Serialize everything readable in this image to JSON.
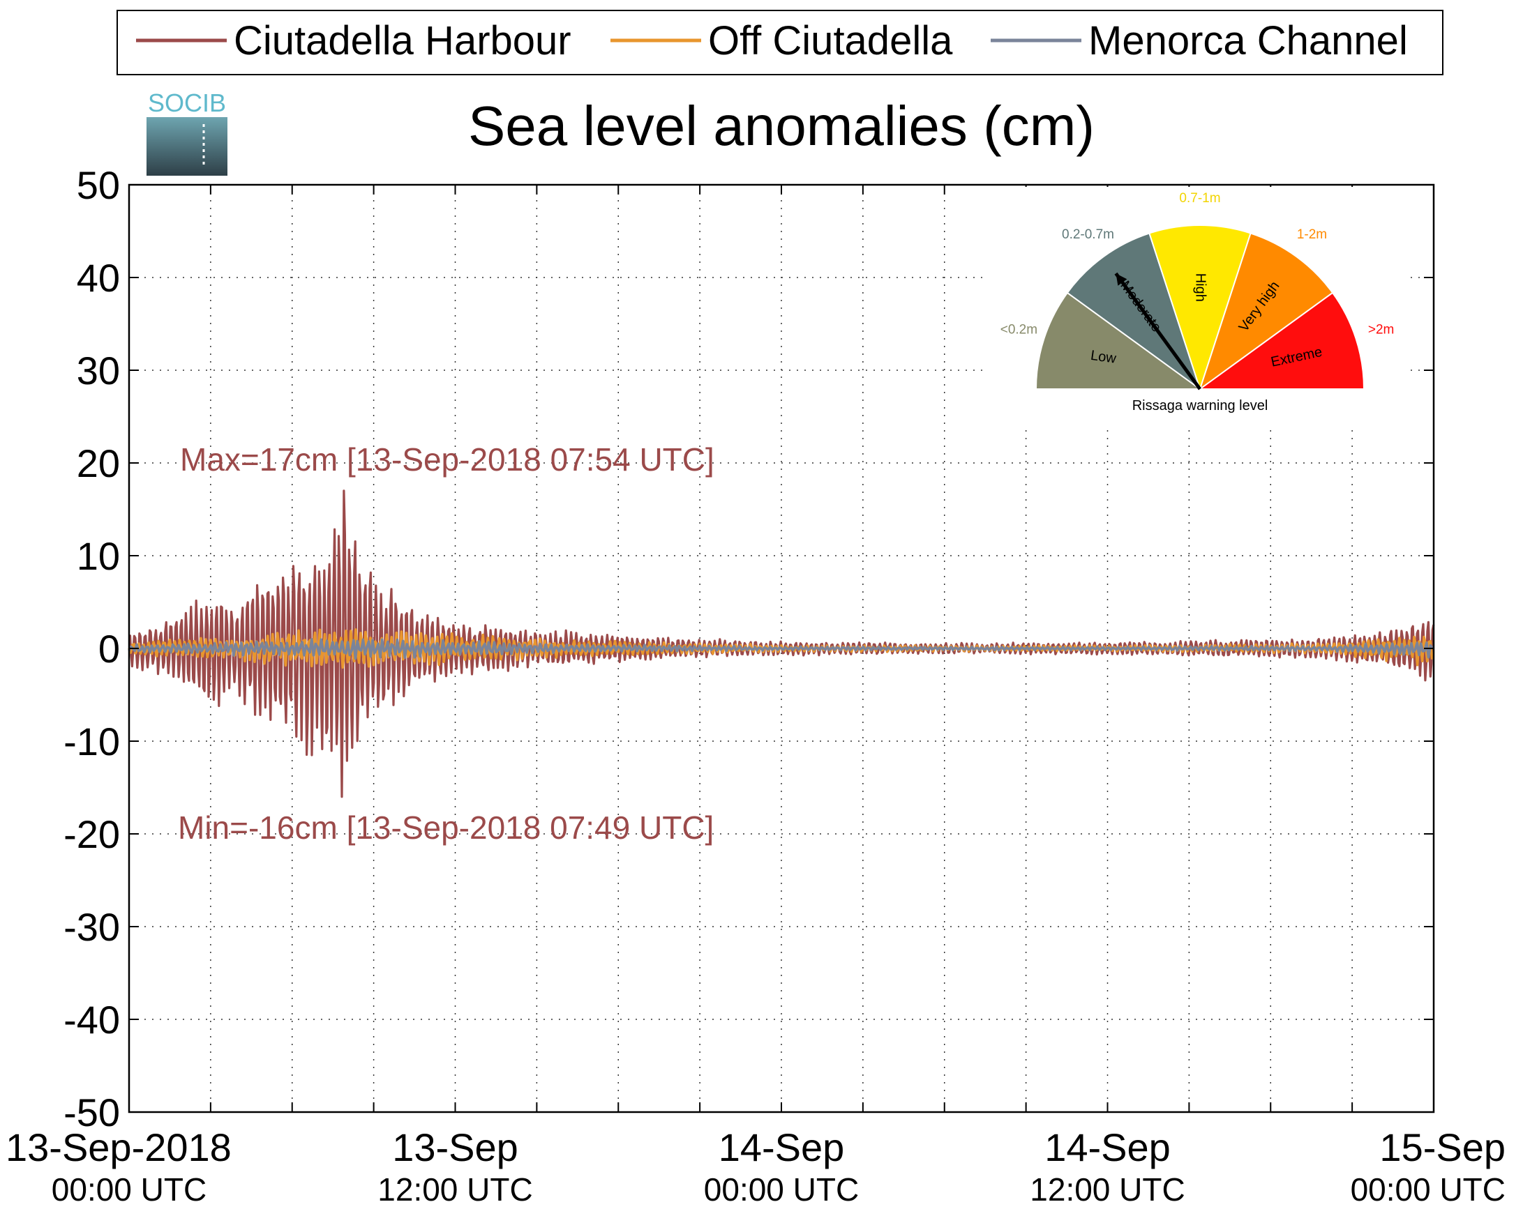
{
  "chart_data": {
    "type": "line",
    "title": "Sea level anomalies (cm)",
    "logo_text": "SOCIB",
    "ylim": [
      -50,
      50
    ],
    "y_ticks": [
      50,
      40,
      30,
      20,
      10,
      0,
      -10,
      -20,
      -30,
      -40,
      -50
    ],
    "x_range_hours": [
      0,
      48
    ],
    "x_major_ticks": [
      {
        "hour": 0,
        "date": "13-Sep-2018",
        "time": "00:00 UTC"
      },
      {
        "hour": 12,
        "date": "13-Sep",
        "time": "12:00 UTC"
      },
      {
        "hour": 24,
        "date": "14-Sep",
        "time": "00:00 UTC"
      },
      {
        "hour": 36,
        "date": "14-Sep",
        "time": "12:00 UTC"
      },
      {
        "hour": 48,
        "date": "15-Sep",
        "time": "00:00 UTC"
      }
    ],
    "x_minor_tick_interval_hours": 3,
    "grid": true,
    "legend_position": "top",
    "series": [
      {
        "name": "Ciutadella Harbour",
        "color": "#9b4a4a",
        "envelope_hours": [
          0,
          2,
          3,
          4,
          5,
          6,
          7,
          7.9,
          8.3,
          9,
          10,
          11,
          12,
          14,
          16,
          18,
          20,
          24,
          30,
          36,
          40,
          44,
          46,
          47,
          48
        ],
        "envelope_amplitude_cm": [
          2,
          4,
          7,
          5,
          9,
          11,
          13,
          17,
          13,
          9,
          6,
          4,
          3,
          2.5,
          2,
          1.5,
          1.2,
          0.8,
          0.6,
          0.7,
          0.9,
          1.2,
          1.8,
          3,
          4
        ]
      },
      {
        "name": "Off Ciutadella",
        "color": "#e8962e",
        "envelope_hours": [
          0,
          4,
          8,
          12,
          16,
          24,
          36,
          44,
          48
        ],
        "envelope_amplitude_cm": [
          0.8,
          1.5,
          2.5,
          1.8,
          1,
          0.4,
          0.3,
          0.6,
          2
        ]
      },
      {
        "name": "Menorca Channel",
        "color": "#7a849a",
        "envelope_hours": [
          0,
          4,
          8,
          12,
          16,
          24,
          36,
          44,
          48
        ],
        "envelope_amplitude_cm": [
          0.4,
          0.8,
          1.2,
          0.9,
          0.5,
          0.2,
          0.2,
          0.3,
          1
        ]
      }
    ],
    "annotations": {
      "max": {
        "text": "Max=17cm [13-Sep-2018 07:54 UTC]",
        "hour": 7.9,
        "value": 17
      },
      "min": {
        "text": "Min=-16cm [13-Sep-2018 07:49 UTC]",
        "hour": 7.82,
        "value": -16
      },
      "color": "#9b4a4a"
    },
    "gauge": {
      "caption": "Rissaga warning level",
      "needle_level": "Moderate",
      "sectors": [
        {
          "level": "Low",
          "range": "<0.2m",
          "color": "#878a6a",
          "range_color": "#878a6a"
        },
        {
          "level": "Moderate",
          "range": "0.2-0.7m",
          "color": "#5f7878",
          "range_color": "#5f7878"
        },
        {
          "level": "High",
          "range": "0.7-1m",
          "color": "#ffe800",
          "range_color": "#f2d400"
        },
        {
          "level": "Very high",
          "range": "1-2m",
          "color": "#ff8a00",
          "range_color": "#ff8a00"
        },
        {
          "level": "Extreme",
          "range": ">2m",
          "color": "#ff0d0d",
          "range_color": "#ff0d0d"
        }
      ]
    }
  }
}
